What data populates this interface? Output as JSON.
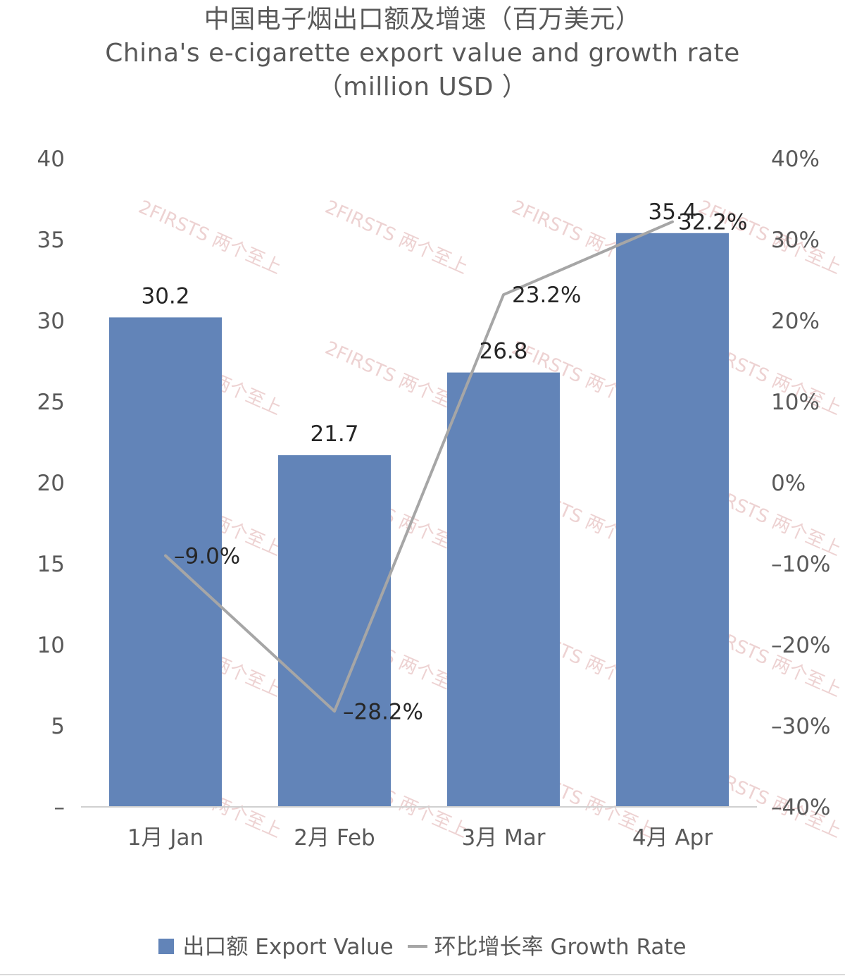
{
  "chart_data": {
    "type": "bar",
    "title_lines": [
      "中国电子烟出口额及增速（百万美元）",
      "China's e-cigarette export value and growth rate",
      "（million USD ）"
    ],
    "categories": [
      "1月 Jan",
      "2月 Feb",
      "3月 Mar",
      "4月 Apr"
    ],
    "series": [
      {
        "name": "出口额 Export Value",
        "type": "bar",
        "axis": "left",
        "values": [
          30.2,
          21.7,
          26.8,
          35.4
        ],
        "labels": [
          "30.2",
          "21.7",
          "26.8",
          "35.4"
        ],
        "color": "#6284b8"
      },
      {
        "name": "环比增长率 Growth Rate",
        "type": "line",
        "axis": "right",
        "values": [
          -9.0,
          -28.2,
          23.2,
          32.2
        ],
        "labels": [
          "–9.0%",
          "–28.2%",
          "23.2%",
          "32.2%"
        ],
        "color": "#a6a6a6"
      }
    ],
    "y_left": {
      "range": [
        0,
        40
      ],
      "ticks": [
        "–",
        "5",
        "10",
        "15",
        "20",
        "25",
        "30",
        "35",
        "40"
      ]
    },
    "y_right": {
      "range": [
        -40,
        40
      ],
      "ticks": [
        "–40%",
        "–30%",
        "–20%",
        "–10%",
        "0%",
        "10%",
        "20%",
        "30%",
        "40%"
      ]
    },
    "grid": false,
    "legend_position": "bottom"
  },
  "watermark": {
    "text": "2FIRSTS 两个至上",
    "color": "#e8c4c4"
  }
}
